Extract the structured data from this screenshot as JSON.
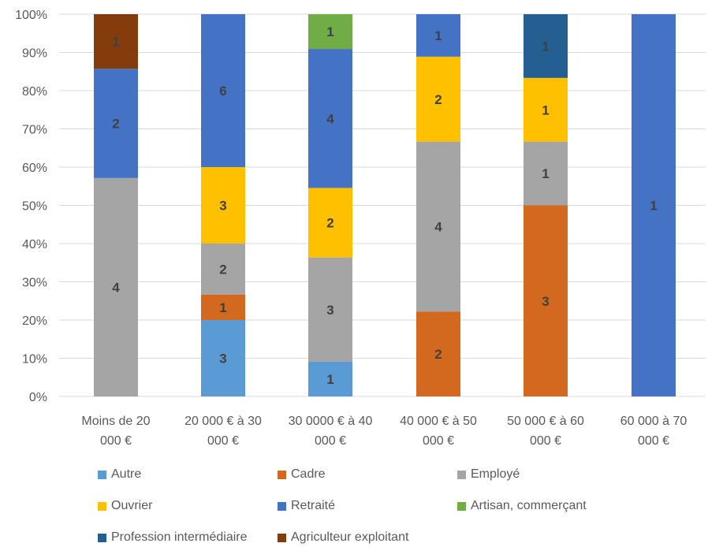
{
  "chart_data": {
    "type": "bar",
    "stacked": "percent",
    "categories": [
      [
        "Moins de 20",
        "000 €"
      ],
      [
        "20 000 € à 30",
        "000 €"
      ],
      [
        "30 0000 € à 40",
        "000 €"
      ],
      [
        "40 000 € à 50",
        "000 €"
      ],
      [
        "50 000 € à 60",
        "000 €"
      ],
      [
        "60 000 à 70",
        "000 €"
      ]
    ],
    "series": [
      {
        "name": "Autre",
        "color": "#5b9bd5",
        "values": [
          0,
          3,
          1,
          0,
          0,
          0
        ]
      },
      {
        "name": "Cadre",
        "color": "#d2691e",
        "values": [
          0,
          1,
          0,
          2,
          3,
          0
        ]
      },
      {
        "name": "Employé",
        "color": "#a5a5a5",
        "values": [
          4,
          2,
          3,
          4,
          1,
          0
        ]
      },
      {
        "name": "Ouvrier",
        "color": "#ffc000",
        "values": [
          0,
          3,
          2,
          2,
          1,
          0
        ]
      },
      {
        "name": "Retraité",
        "color": "#4472c4",
        "values": [
          2,
          6,
          4,
          1,
          0,
          1
        ]
      },
      {
        "name": "Artisan, commerçant",
        "color": "#70ad47",
        "values": [
          0,
          0,
          1,
          0,
          0,
          0
        ]
      },
      {
        "name": "Profession intermédiaire",
        "color": "#255e91",
        "values": [
          0,
          0,
          0,
          0,
          1,
          0
        ]
      },
      {
        "name": "Agriculteur exploitant",
        "color": "#843c0c",
        "values": [
          1,
          0,
          0,
          0,
          0,
          0
        ]
      }
    ],
    "y_ticks": [
      "0%",
      "10%",
      "20%",
      "30%",
      "40%",
      "50%",
      "60%",
      "70%",
      "80%",
      "90%",
      "100%"
    ],
    "ylim": [
      0,
      100
    ],
    "grid": true,
    "legend_position": "bottom"
  }
}
